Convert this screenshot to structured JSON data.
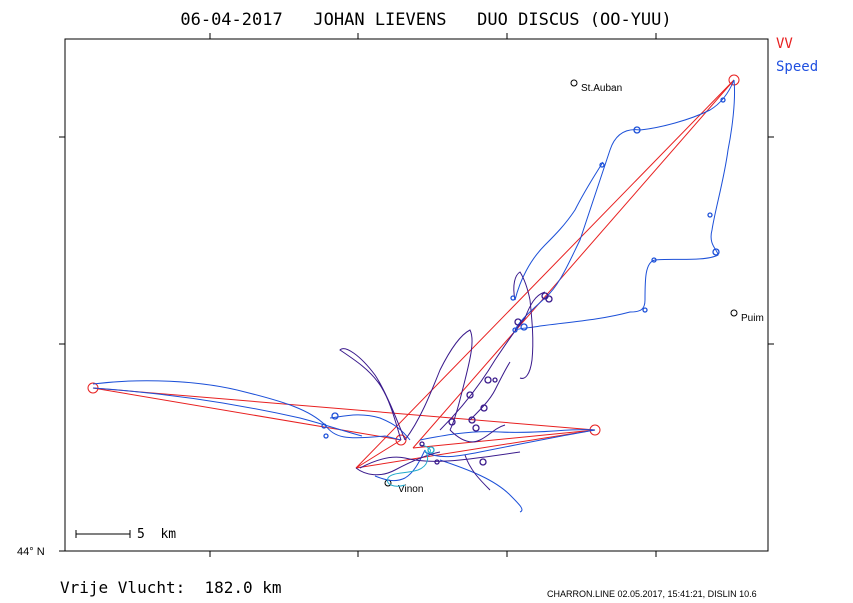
{
  "header": {
    "title": "06-04-2017   JOHAN LIEVENS   DUO DISCUS (OO-YUU)"
  },
  "legend": {
    "items": [
      {
        "label": "VV",
        "color": "#e82020"
      },
      {
        "label": "Speed",
        "color": "#2050e0"
      }
    ]
  },
  "map": {
    "latitude_label": "44° N",
    "scale_label": "5  km",
    "places": [
      {
        "name": "St.Auban"
      },
      {
        "name": "Puim"
      },
      {
        "name": "Vinon"
      }
    ],
    "colors": {
      "task": "#e82020",
      "track_blue": "#1c50d8",
      "track_purple": "#3a1a8c",
      "track_cyan": "#22aacc",
      "frame": "#000000"
    }
  },
  "footer": {
    "distance_label": "Vrije Vlucht:  182.0 km",
    "credits": "CHARRON.LINE 02.05.2017, 15:41:21, DISLIN 10.6"
  }
}
